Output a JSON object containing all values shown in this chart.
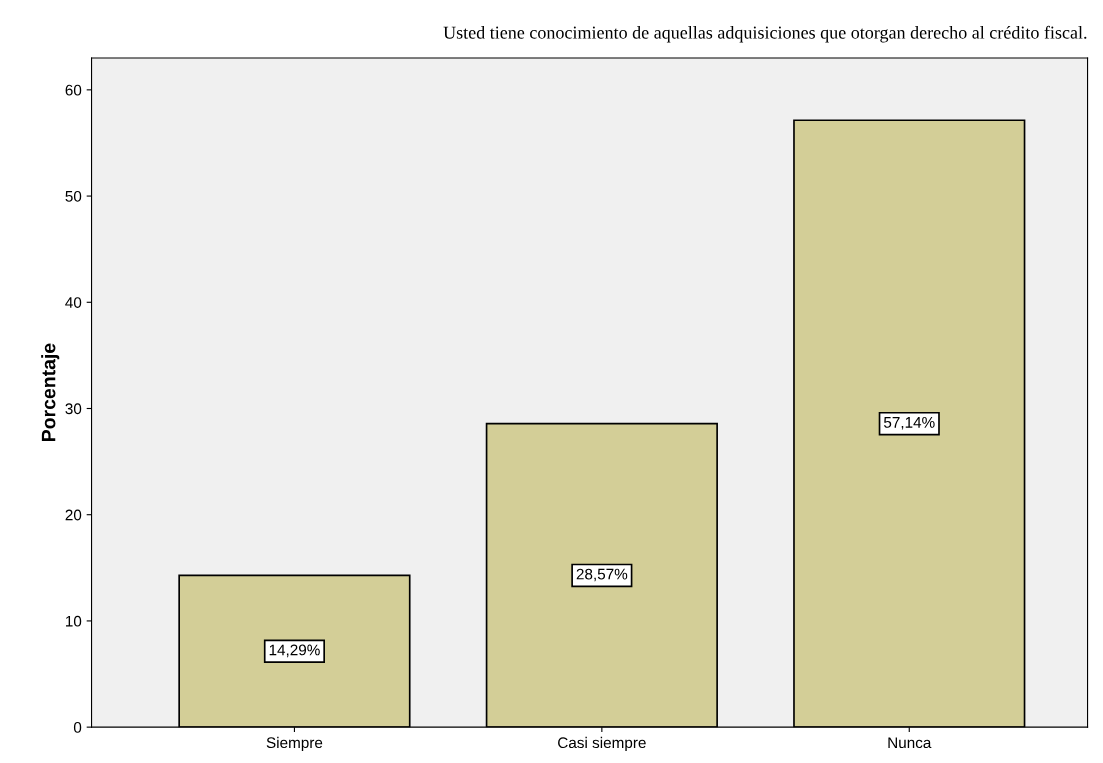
{
  "chart_data": {
    "type": "bar",
    "title": "Usted tiene conocimiento de aquellas adquisiciones que otorgan derecho al crédito fiscal.",
    "ylabel": "Porcentaje",
    "categories": [
      "Siempre",
      "Casi siempre",
      "Nunca"
    ],
    "values": [
      14.29,
      28.57,
      57.14
    ],
    "value_labels": [
      "14,29%",
      "28,57%",
      "57,14%"
    ],
    "color": "#d3ce97",
    "ylim": [
      0,
      63
    ],
    "yticks": [
      0,
      10,
      20,
      30,
      40,
      50,
      60
    ],
    "grid": false
  }
}
